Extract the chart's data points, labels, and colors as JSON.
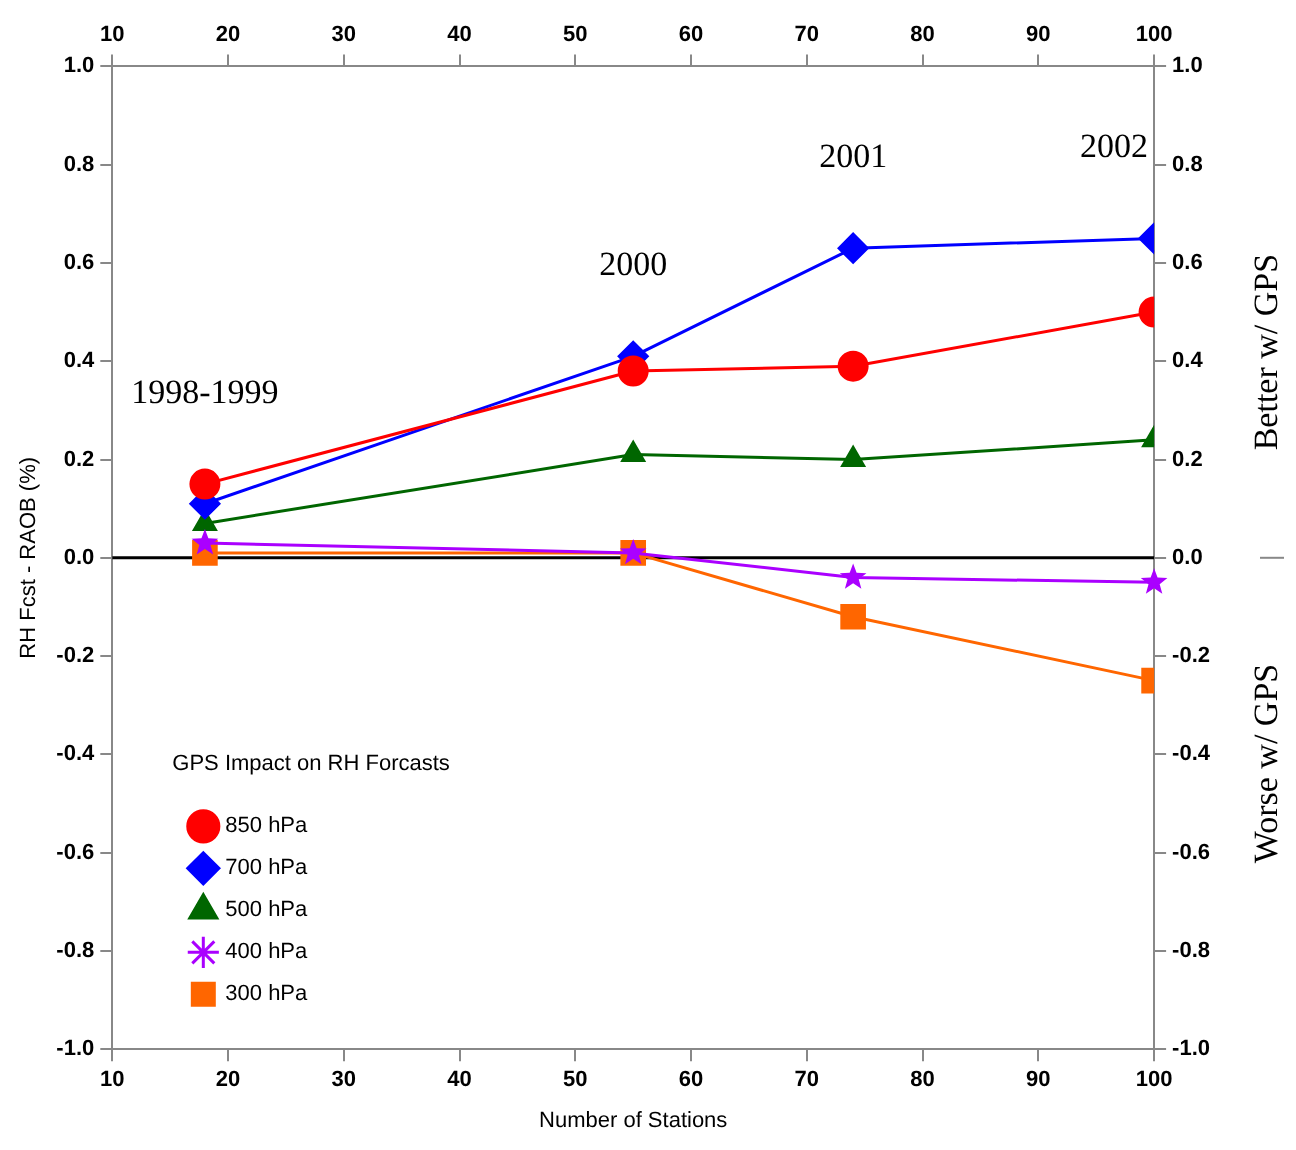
{
  "chart_data": {
    "type": "line",
    "xlabel": "Number of Stations",
    "ylabel": "RH Fcst - RAOB (%)",
    "y2label": "Better w/ GPS",
    "legend_title": "GPS Impact on RH Forcasts",
    "legend": "bottom left",
    "x": [
      18,
      55,
      74,
      100
    ],
    "series": [
      {
        "name": "850 hPa",
        "color": "#ff0000",
        "marker": "circle",
        "values": [
          0.15,
          0.38,
          0.39,
          0.5
        ]
      },
      {
        "name": "700 hPa",
        "color": "#0000ff",
        "marker": "diamond",
        "values": [
          0.11,
          0.41,
          0.63,
          0.65
        ]
      },
      {
        "name": "500 hPa",
        "color": "#006600",
        "marker": "triangle",
        "values": [
          0.07,
          0.21,
          0.2,
          0.24
        ]
      },
      {
        "name": "400 hPa",
        "color": "#aa00ff",
        "marker": "star",
        "values": [
          0.03,
          0.01,
          -0.04,
          -0.05
        ]
      },
      {
        "name": "300 hPa",
        "color": "#ff6600",
        "marker": "square",
        "values": [
          0.01,
          0.01,
          -0.12,
          -0.25
        ]
      }
    ],
    "xlim": [
      10,
      100
    ],
    "xticks": [
      10,
      20,
      30,
      40,
      50,
      60,
      70,
      80,
      90,
      100
    ],
    "x2lim": [
      10,
      100
    ],
    "x2ticks": [
      10,
      20,
      30,
      40,
      50,
      60,
      70,
      80,
      90,
      100
    ],
    "ylim": [
      -1,
      1
    ],
    "yticks": [
      {
        "value": -1,
        "label": "-1.0"
      },
      {
        "value": -0.8,
        "label": "-0.8"
      },
      {
        "value": -0.6,
        "label": "-0.6"
      },
      {
        "value": -0.4,
        "label": "-0.4"
      },
      {
        "value": -0.2,
        "label": "-0.2"
      },
      {
        "value": 0,
        "label": "0.0"
      },
      {
        "value": 0.2,
        "label": "0.2"
      },
      {
        "value": 0.4,
        "label": "0.4"
      },
      {
        "value": 0.6,
        "label": "0.6"
      },
      {
        "value": 0.8,
        "label": "0.8"
      },
      {
        "value": 1,
        "label": "1.0"
      }
    ],
    "y2lim": [
      -1,
      1
    ],
    "y2ticks": [
      {
        "value": -1,
        "label": "-1.0"
      },
      {
        "value": -0.8,
        "label": "-0.8"
      },
      {
        "value": -0.6,
        "label": "-0.6"
      },
      {
        "value": -0.4,
        "label": "-0.4"
      },
      {
        "value": -0.2,
        "label": "-0.2"
      },
      {
        "value": 0,
        "label": "0.0"
      },
      {
        "value": 0.2,
        "label": "0.2"
      },
      {
        "value": 0.4,
        "label": "0.4"
      },
      {
        "value": 0.6,
        "label": "0.6"
      },
      {
        "value": 0.8,
        "label": "0.8"
      },
      {
        "value": 1,
        "label": "1.0"
      }
    ],
    "ref_lines": [
      {
        "axis": "y",
        "value": 0,
        "color": "#000000"
      }
    ],
    "grid": false,
    "annotations": [
      "1998-1999",
      "2000",
      "2001",
      "2002",
      "Worse w/ GPS"
    ]
  }
}
